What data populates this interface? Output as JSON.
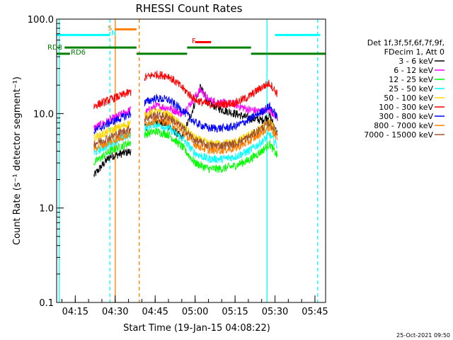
{
  "chart_data": {
    "type": "line",
    "title": "RHESSI Count Rates",
    "xlabel": "Start Time (19-Jan-15 04:08:22)",
    "ylabel": "Count Rate (s⁻¹ detector segment⁻¹)",
    "yscale": "log",
    "ylim": [
      0.1,
      100.0
    ],
    "xlim": [
      "04:08",
      "05:49"
    ],
    "x_ticks": [
      "04:15",
      "04:30",
      "04:45",
      "05:00",
      "05:15",
      "05:30",
      "05:45"
    ],
    "y_ticks": [
      "0.1",
      "1.0",
      "10.0",
      "100.0"
    ],
    "timestamp": "25-Oct-2021 09:50",
    "legend": {
      "placement": "right",
      "header": [
        "Det 1f,3f,5f,6f,7f,9f,",
        "FDecim 1, Att 0"
      ],
      "entries": [
        {
          "label": "3 - 6 keV",
          "color": "#000000"
        },
        {
          "label": "6 - 12 keV",
          "color": "#ff00ff"
        },
        {
          "label": "12 - 25 keV",
          "color": "#00ff00"
        },
        {
          "label": "25 - 50 keV",
          "color": "#00ffff"
        },
        {
          "label": "50 - 100 keV",
          "color": "#ffd700"
        },
        {
          "label": "100 - 300 keV",
          "color": "#ff0000"
        },
        {
          "label": "300 - 800 keV",
          "color": "#0000ff"
        },
        {
          "label": "800 - 7000 keV",
          "color": "#ff8000"
        },
        {
          "label": "7000 - 15000 keV",
          "color": "#a0522d"
        }
      ]
    },
    "segments": [
      {
        "start": "04:22",
        "end": "04:36"
      },
      {
        "start": "04:41",
        "end": "05:31"
      }
    ],
    "series": [
      {
        "name": "3 - 6 keV",
        "color": "#000000",
        "points": [
          [
            "04:22",
            2.2
          ],
          [
            "04:25",
            2.8
          ],
          [
            "04:28",
            3.5
          ],
          [
            "04:36",
            4.0
          ],
          [
            "04:41",
            7.0
          ],
          [
            "04:45",
            8.5
          ],
          [
            "04:50",
            7.5
          ],
          [
            "04:55",
            5.5
          ],
          [
            "04:58",
            9.0
          ],
          [
            "05:02",
            19.0
          ],
          [
            "05:05",
            13.0
          ],
          [
            "05:10",
            11.0
          ],
          [
            "05:15",
            10.0
          ],
          [
            "05:20",
            9.0
          ],
          [
            "05:25",
            8.5
          ],
          [
            "05:28",
            9.5
          ],
          [
            "05:31",
            6.0
          ]
        ]
      },
      {
        "name": "6 - 12 keV",
        "color": "#ff00ff",
        "points": [
          [
            "04:22",
            7.0
          ],
          [
            "04:28",
            8.5
          ],
          [
            "04:36",
            11.0
          ],
          [
            "04:41",
            10.0
          ],
          [
            "04:45",
            12.0
          ],
          [
            "04:50",
            11.5
          ],
          [
            "04:55",
            10.0
          ],
          [
            "04:58",
            12.5
          ],
          [
            "05:02",
            18.0
          ],
          [
            "05:05",
            14.0
          ],
          [
            "05:10",
            13.0
          ],
          [
            "05:15",
            12.5
          ],
          [
            "05:20",
            11.0
          ],
          [
            "05:25",
            10.5
          ],
          [
            "05:28",
            11.0
          ],
          [
            "05:31",
            9.0
          ]
        ]
      },
      {
        "name": "12 - 25 keV",
        "color": "#00ff00",
        "points": [
          [
            "04:22",
            3.0
          ],
          [
            "04:28",
            4.0
          ],
          [
            "04:36",
            5.0
          ],
          [
            "04:41",
            6.0
          ],
          [
            "04:45",
            6.5
          ],
          [
            "04:50",
            6.0
          ],
          [
            "04:55",
            4.5
          ],
          [
            "05:00",
            3.0
          ],
          [
            "05:05",
            2.6
          ],
          [
            "05:10",
            2.6
          ],
          [
            "05:15",
            2.8
          ],
          [
            "05:20",
            3.2
          ],
          [
            "05:25",
            4.0
          ],
          [
            "05:28",
            4.8
          ],
          [
            "05:31",
            3.5
          ]
        ]
      },
      {
        "name": "25 - 50 keV",
        "color": "#00ffff",
        "points": [
          [
            "04:22",
            3.8
          ],
          [
            "04:28",
            4.8
          ],
          [
            "04:36",
            6.0
          ],
          [
            "04:41",
            7.2
          ],
          [
            "04:45",
            7.8
          ],
          [
            "04:50",
            7.0
          ],
          [
            "04:55",
            5.5
          ],
          [
            "05:00",
            3.8
          ],
          [
            "05:05",
            3.3
          ],
          [
            "05:10",
            3.3
          ],
          [
            "05:15",
            3.5
          ],
          [
            "05:20",
            4.0
          ],
          [
            "05:25",
            5.0
          ],
          [
            "05:28",
            6.0
          ],
          [
            "05:31",
            4.5
          ]
        ]
      },
      {
        "name": "50 - 100 keV",
        "color": "#ffd700",
        "points": [
          [
            "04:22",
            5.5
          ],
          [
            "04:28",
            6.5
          ],
          [
            "04:36",
            8.0
          ],
          [
            "04:41",
            9.5
          ],
          [
            "04:45",
            10.5
          ],
          [
            "04:50",
            9.8
          ],
          [
            "04:55",
            7.5
          ],
          [
            "05:00",
            5.5
          ],
          [
            "05:05",
            4.8
          ],
          [
            "05:10",
            4.8
          ],
          [
            "05:15",
            5.0
          ],
          [
            "05:20",
            5.8
          ],
          [
            "05:25",
            7.0
          ],
          [
            "05:28",
            8.2
          ],
          [
            "05:31",
            6.0
          ]
        ]
      },
      {
        "name": "100 - 300 keV",
        "color": "#ff0000",
        "points": [
          [
            "04:22",
            12.0
          ],
          [
            "04:28",
            14.0
          ],
          [
            "04:36",
            17.0
          ],
          [
            "04:41",
            24.0
          ],
          [
            "04:45",
            26.0
          ],
          [
            "04:50",
            25.0
          ],
          [
            "04:55",
            19.0
          ],
          [
            "05:00",
            14.0
          ],
          [
            "05:05",
            12.5
          ],
          [
            "05:10",
            12.5
          ],
          [
            "05:15",
            13.0
          ],
          [
            "05:20",
            15.0
          ],
          [
            "05:25",
            19.0
          ],
          [
            "05:28",
            21.0
          ],
          [
            "05:31",
            16.0
          ]
        ]
      },
      {
        "name": "300 - 800 keV",
        "color": "#0000ff",
        "points": [
          [
            "04:22",
            6.5
          ],
          [
            "04:28",
            8.0
          ],
          [
            "04:36",
            10.0
          ],
          [
            "04:41",
            13.0
          ],
          [
            "04:45",
            14.5
          ],
          [
            "04:50",
            14.0
          ],
          [
            "04:55",
            11.0
          ],
          [
            "05:00",
            8.0
          ],
          [
            "05:05",
            7.0
          ],
          [
            "05:10",
            7.0
          ],
          [
            "05:15",
            7.3
          ],
          [
            "05:20",
            8.5
          ],
          [
            "05:25",
            10.5
          ],
          [
            "05:28",
            12.0
          ],
          [
            "05:31",
            9.0
          ]
        ]
      },
      {
        "name": "800 - 7000 keV",
        "color": "#ff8000",
        "points": [
          [
            "04:22",
            4.3
          ],
          [
            "04:28",
            5.0
          ],
          [
            "04:36",
            6.2
          ],
          [
            "04:41",
            7.8
          ],
          [
            "04:45",
            8.5
          ],
          [
            "04:50",
            8.2
          ],
          [
            "04:55",
            6.5
          ],
          [
            "05:00",
            4.7
          ],
          [
            "05:05",
            4.1
          ],
          [
            "05:10",
            4.1
          ],
          [
            "05:15",
            4.3
          ],
          [
            "05:20",
            5.0
          ],
          [
            "05:25",
            6.3
          ],
          [
            "05:28",
            7.2
          ],
          [
            "05:31",
            5.5
          ]
        ]
      },
      {
        "name": "7000 - 15000 keV",
        "color": "#a0522d",
        "points": [
          [
            "04:22",
            4.8
          ],
          [
            "04:28",
            5.6
          ],
          [
            "04:36",
            7.0
          ],
          [
            "04:41",
            8.8
          ],
          [
            "04:45",
            9.6
          ],
          [
            "04:50",
            9.2
          ],
          [
            "04:55",
            7.2
          ],
          [
            "05:00",
            5.2
          ],
          [
            "05:05",
            4.6
          ],
          [
            "05:10",
            4.6
          ],
          [
            "05:15",
            4.8
          ],
          [
            "05:20",
            5.6
          ],
          [
            "05:25",
            7.0
          ],
          [
            "05:28",
            8.0
          ],
          [
            "05:31",
            6.0
          ]
        ]
      }
    ],
    "annotations": [
      {
        "label": "RD8",
        "color": "#008000"
      },
      {
        "label": "RD6",
        "color": "#008000"
      },
      {
        "label": "S",
        "color": "#ff8000"
      },
      {
        "label": "N",
        "color": "#00ffff"
      },
      {
        "label": "F",
        "color": "#ff0000"
      }
    ],
    "status_bars": [
      {
        "color": "#00ffff",
        "y": 68,
        "start": "04:08",
        "end": "04:28"
      },
      {
        "color": "#00ffff",
        "y": 68,
        "start": "05:30",
        "end": "05:47"
      },
      {
        "color": "#ff8000",
        "y": 78,
        "start": "04:30",
        "end": "04:38"
      },
      {
        "color": "#ff0000",
        "y": 57,
        "start": "05:00",
        "end": "05:06"
      },
      {
        "color": "#008000",
        "y": 50,
        "start": "04:11",
        "end": "04:38"
      },
      {
        "color": "#008000",
        "y": 50,
        "start": "04:57",
        "end": "05:21"
      },
      {
        "color": "#008000",
        "y": 43,
        "start": "04:08",
        "end": "04:13"
      },
      {
        "color": "#008000",
        "y": 43,
        "start": "04:38",
        "end": "04:57"
      },
      {
        "color": "#008000",
        "y": 43,
        "start": "05:21",
        "end": "05:49"
      }
    ],
    "vlines": [
      {
        "time": "04:09",
        "color": "#00ffff",
        "style": "solid"
      },
      {
        "time": "04:28",
        "color": "#00ffff",
        "style": "dashed"
      },
      {
        "time": "04:30",
        "color": "#ff8000",
        "style": "solid"
      },
      {
        "time": "04:39",
        "color": "#ff8000",
        "style": "dashed"
      },
      {
        "time": "05:27",
        "color": "#00ffff",
        "style": "solid"
      },
      {
        "time": "05:46",
        "color": "#00ffff",
        "style": "dashed"
      }
    ]
  }
}
